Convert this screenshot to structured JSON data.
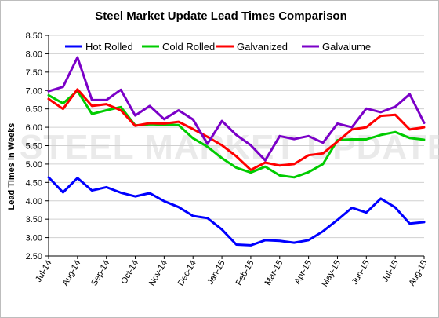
{
  "chart_data": {
    "type": "line",
    "title": "Steel Market Update Lead Times Comparison",
    "ylabel": "Lead Times in Weeks",
    "xlabel": "",
    "watermark": "STEEL MARKET UPDATE",
    "ylim": [
      2.5,
      8.5
    ],
    "yticks": [
      "2.50",
      "3.00",
      "3.50",
      "4.00",
      "4.50",
      "5.00",
      "5.50",
      "6.00",
      "6.50",
      "7.00",
      "7.50",
      "8.00",
      "8.50"
    ],
    "x_labels": [
      "Jul-14",
      "Aug-14",
      "Sep-14",
      "Oct-14",
      "Nov-14",
      "Dec-14",
      "Jan-15",
      "Feb-15",
      "Mar-15",
      "Apr-15",
      "May-15",
      "Jun-15",
      "Jul-15",
      "Aug-15"
    ],
    "points_per_label": 2,
    "legend_position": "top",
    "grid": "horizontal",
    "series": [
      {
        "name": "Hot Rolled",
        "color": "#0000ff",
        "values": [
          4.64,
          4.23,
          4.62,
          4.28,
          4.37,
          4.22,
          4.12,
          4.21,
          3.99,
          3.83,
          3.59,
          3.53,
          3.22,
          2.81,
          2.79,
          2.93,
          2.91,
          2.86,
          2.93,
          3.17,
          3.48,
          3.81,
          3.68,
          4.06,
          3.82,
          3.38,
          3.42
        ]
      },
      {
        "name": "Cold Rolled",
        "color": "#00cc00",
        "values": [
          6.87,
          6.65,
          6.99,
          6.36,
          6.46,
          6.55,
          6.05,
          6.08,
          6.07,
          6.06,
          5.7,
          5.47,
          5.16,
          4.9,
          4.77,
          4.93,
          4.69,
          4.64,
          4.78,
          5.0,
          5.65,
          5.67,
          5.67,
          5.79,
          5.87,
          5.71,
          5.66
        ]
      },
      {
        "name": "Galvanized",
        "color": "#ff0000",
        "values": [
          6.77,
          6.5,
          7.03,
          6.58,
          6.63,
          6.46,
          6.04,
          6.11,
          6.1,
          6.15,
          5.95,
          5.74,
          5.51,
          5.21,
          4.84,
          5.04,
          4.96,
          5.0,
          5.24,
          5.29,
          5.61,
          5.94,
          6.0,
          6.31,
          6.34,
          5.94,
          6.0
        ]
      },
      {
        "name": "Galvalume",
        "color": "#7b00c8",
        "values": [
          6.98,
          7.1,
          7.9,
          6.74,
          6.74,
          7.02,
          6.32,
          6.58,
          6.22,
          6.46,
          6.21,
          5.55,
          6.17,
          5.79,
          5.51,
          5.1,
          5.76,
          5.68,
          5.76,
          5.58,
          6.1,
          6.0,
          6.51,
          6.41,
          6.56,
          6.9,
          6.12
        ]
      }
    ]
  }
}
